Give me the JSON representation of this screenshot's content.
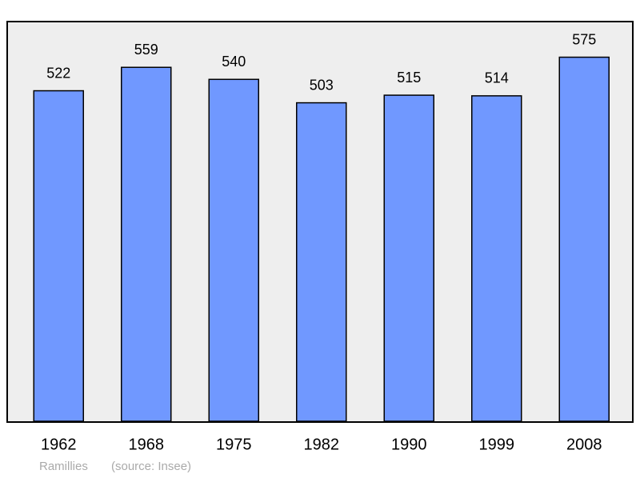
{
  "chart_data": {
    "type": "bar",
    "categories": [
      "1962",
      "1968",
      "1975",
      "1982",
      "1990",
      "1999",
      "2008"
    ],
    "values": [
      522,
      559,
      540,
      503,
      515,
      514,
      575
    ],
    "color": "#7098ff",
    "ylim": [
      0,
      630
    ],
    "caption": "Ramillies",
    "source": "(source: Insee)"
  }
}
